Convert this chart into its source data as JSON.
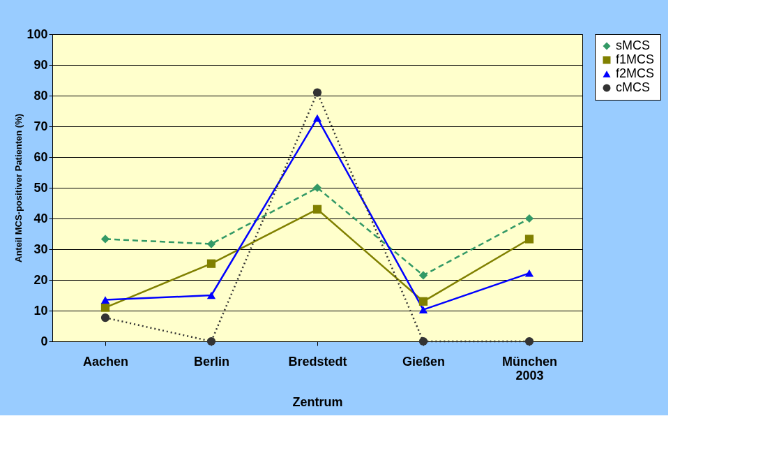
{
  "chart_data": {
    "type": "line",
    "xlabel": "Zentrum",
    "ylabel": "Anteil MCS-positiver Patienten (%)",
    "categories": [
      "Aachen",
      "Berlin",
      "Bredstedt",
      "Gießen",
      "München 2003"
    ],
    "ylim": [
      0,
      100
    ],
    "yticks": [
      0,
      10,
      20,
      30,
      40,
      50,
      60,
      70,
      80,
      90,
      100
    ],
    "grid": "y",
    "legend": "right",
    "series": [
      {
        "name": "sMCS",
        "color": "#339966",
        "marker": "diamond",
        "line_style": "dashed",
        "values": [
          33.3,
          31.7,
          50,
          21.5,
          40
        ]
      },
      {
        "name": "f1MCS",
        "color": "#808000",
        "marker": "square",
        "line_style": "solid",
        "values": [
          11,
          25.3,
          43,
          13,
          33.3
        ]
      },
      {
        "name": "f2MCS",
        "color": "#0000ff",
        "marker": "triangle",
        "line_style": "solid",
        "values": [
          13.5,
          15,
          72.7,
          10.3,
          22.2
        ]
      },
      {
        "name": "cMCS",
        "color": "#333333",
        "marker": "circle",
        "line_style": "dotted",
        "values": [
          7.7,
          0,
          81,
          0,
          0
        ]
      }
    ]
  }
}
